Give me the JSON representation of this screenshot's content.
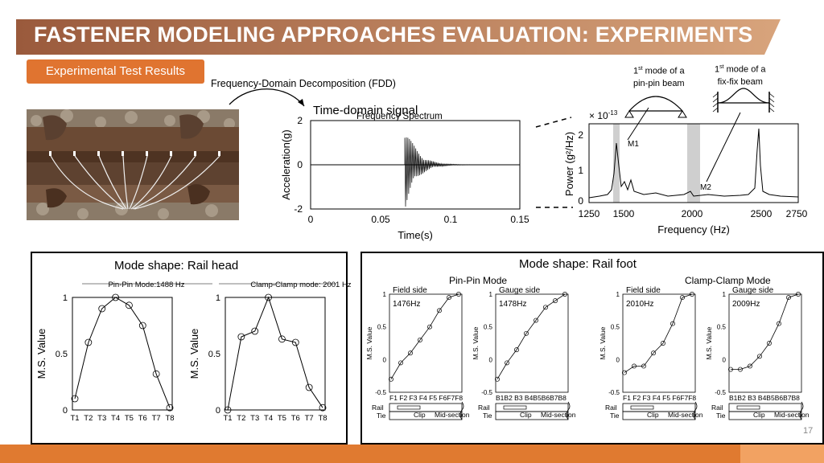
{
  "header": {
    "title": "FASTENER MODELING APPROACHES EVALUATION: EXPERIMENTS"
  },
  "section_label": "Experimental Test Results",
  "fdd_label": "Frequency-Domain Decomposition (FDD)",
  "beam_modes": {
    "pin_pin": {
      "sup": "st",
      "line1_rest": " mode of a",
      "num": "1",
      "line2": "pin-pin beam"
    },
    "fix_fix": {
      "sup": "st",
      "line1_rest": " mode of a",
      "num": "1",
      "line2": "fix-fix beam"
    }
  },
  "time_domain": {
    "title": "Time-domain signal",
    "overlay_title": "Frequency Spectrum",
    "ylabel": "Acceleration(g)",
    "xlabel": "Time(s)",
    "xticks": [
      "0",
      "0.05",
      "0.1",
      "0.15"
    ],
    "yticks": [
      "2",
      "0",
      "-2"
    ]
  },
  "spectrum": {
    "ylabel": "Power (g²/Hz)",
    "xlabel": "Frequency (Hz)",
    "scale": "× 10",
    "scale_exp": "-13",
    "xticks": [
      "1250",
      "1500",
      "2000",
      "2500",
      "2750"
    ],
    "yticks": [
      "2",
      "1",
      "0"
    ],
    "m1": "M1",
    "m2": "M2"
  },
  "rail_head": {
    "title": "Mode shape: Rail head",
    "left_title": "Pin-Pin Mode:1488 Hz",
    "right_title": "Clamp-Clamp mode: 2001 Hz",
    "ylabel": "M.S. Value",
    "yticks": [
      "1",
      "0.5",
      "0"
    ],
    "xticks": [
      "T1",
      "T2",
      "T3",
      "T4",
      "T5",
      "T6",
      "T7",
      "T8"
    ]
  },
  "rail_foot": {
    "title": "Mode shape: Rail foot",
    "pin_title": "Pin-Pin Mode",
    "clamp_title": "Clamp-Clamp Mode",
    "ylabel": "M.S. Value",
    "yticks": [
      "1",
      "0.5",
      "0",
      "-0.5"
    ],
    "field_side": "Field side",
    "gauge_side": "Gauge side",
    "f_ticks": "F1 F2 F3 F4 F5 F6F7F8",
    "b_ticks": "B1B2 B3 B4B5B6B7B8",
    "rail": "Rail",
    "tie": "Tie",
    "clip": "Clip",
    "mid": "Mid-section",
    "freqs": [
      "1476Hz",
      "1478Hz",
      "2010Hz",
      "2009Hz"
    ]
  },
  "page_number": "17",
  "chart_data": [
    {
      "type": "line",
      "title": "Pin-Pin Mode:1488 Hz",
      "ylabel": "M.S. Value",
      "ylim": [
        0,
        1
      ],
      "categories": [
        "T1",
        "T2",
        "T3",
        "T4",
        "T5",
        "T6",
        "T7",
        "T8"
      ],
      "values": [
        0.1,
        0.6,
        0.9,
        1.0,
        0.93,
        0.75,
        0.32,
        0.02
      ]
    },
    {
      "type": "line",
      "title": "Clamp-Clamp mode: 2001 Hz",
      "ylabel": "M.S. Value",
      "ylim": [
        0,
        1
      ],
      "categories": [
        "T1",
        "T2",
        "T3",
        "T4",
        "T5",
        "T6",
        "T7",
        "T8"
      ],
      "values": [
        0.0,
        0.65,
        0.7,
        1.0,
        0.63,
        0.6,
        0.2,
        0.02
      ]
    },
    {
      "type": "line",
      "title": "Pin-Pin Mode, Field side 1476Hz",
      "ylim": [
        -0.5,
        1
      ],
      "categories": [
        "F1",
        "F2",
        "F3",
        "F4",
        "F5",
        "F6",
        "F7",
        "F8"
      ],
      "values": [
        -0.3,
        -0.05,
        0.1,
        0.3,
        0.5,
        0.75,
        0.95,
        1.0
      ]
    },
    {
      "type": "line",
      "title": "Pin-Pin Mode, Gauge side 1478Hz",
      "ylim": [
        -0.5,
        1
      ],
      "categories": [
        "B1",
        "B2",
        "B3",
        "B4",
        "B5",
        "B6",
        "B7",
        "B8"
      ],
      "values": [
        -0.3,
        -0.05,
        0.15,
        0.4,
        0.6,
        0.8,
        0.9,
        1.0
      ]
    },
    {
      "type": "line",
      "title": "Clamp-Clamp Mode, Field side 2010Hz",
      "ylim": [
        -0.5,
        1
      ],
      "categories": [
        "F1",
        "F2",
        "F3",
        "F4",
        "F5",
        "F6",
        "F7",
        "F8"
      ],
      "values": [
        -0.2,
        -0.1,
        -0.1,
        0.1,
        0.25,
        0.55,
        0.95,
        1.0
      ]
    },
    {
      "type": "line",
      "title": "Clamp-Clamp Mode, Gauge side 2009Hz",
      "ylim": [
        -0.5,
        1
      ],
      "categories": [
        "B1",
        "B2",
        "B3",
        "B4",
        "B5",
        "B6",
        "B7",
        "B8"
      ],
      "values": [
        -0.15,
        -0.15,
        -0.1,
        0.05,
        0.25,
        0.55,
        0.95,
        1.0
      ]
    }
  ]
}
